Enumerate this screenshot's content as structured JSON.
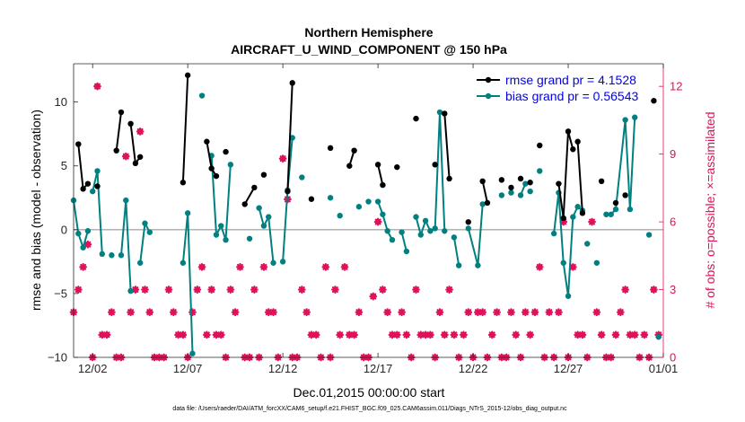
{
  "chart_data": {
    "type": "line",
    "title": [
      "Northern Hemisphere",
      "AIRCRAFT_U_WIND_COMPONENT @ 150 hPa"
    ],
    "xlabel": "Dec.01,2015 00:00:00 start",
    "ylabel_left": "rmse and bias (model - observation)",
    "ylabel_right": "# of obs: o=possible; ×=assimilated",
    "xlim": [
      1,
      32
    ],
    "ylim_left": [
      -10,
      13
    ],
    "ylim_right": [
      0,
      13
    ],
    "x_ticks": [
      {
        "x": 2,
        "label": "12/02"
      },
      {
        "x": 7,
        "label": "12/07"
      },
      {
        "x": 12,
        "label": "12/12"
      },
      {
        "x": 17,
        "label": "12/17"
      },
      {
        "x": 22,
        "label": "12/22"
      },
      {
        "x": 27,
        "label": "12/27"
      },
      {
        "x": 32,
        "label": "01/01"
      }
    ],
    "y_ticks_left": [
      -10,
      -5,
      0,
      5,
      10
    ],
    "y_ticks_right": [
      0,
      3,
      6,
      9,
      12
    ],
    "zero_line": 0,
    "legend": {
      "location": "top-right",
      "entries": [
        "rmse grand pr = 4.1528",
        "bias grand pr = 0.56543"
      ]
    },
    "colors": {
      "rmse": "#000000",
      "bias": "#008080",
      "obs": "#e0105a",
      "legend_text": "#0000ee",
      "zero_line": "#aaaaaa"
    },
    "series": [
      {
        "name": "rmse",
        "axis": "left",
        "segments": [
          [
            [
              1.25,
              6.7
            ],
            [
              1.5,
              3.2
            ],
            [
              1.75,
              3.6
            ]
          ],
          [
            [
              2.25,
              3.4
            ]
          ],
          [
            [
              3.25,
              6.2
            ],
            [
              3.5,
              9.2
            ]
          ],
          [
            [
              4.0,
              8.3
            ],
            [
              4.25,
              5.2
            ],
            [
              4.5,
              5.7
            ]
          ],
          [
            [
              6.75,
              3.7
            ],
            [
              7.0,
              12.1
            ]
          ],
          [
            [
              8.0,
              6.9
            ],
            [
              8.25,
              4.8
            ],
            [
              8.5,
              4.2
            ]
          ],
          [
            [
              9.0,
              6.1
            ]
          ],
          [
            [
              10.0,
              2.0
            ],
            [
              10.5,
              3.3
            ]
          ],
          [
            [
              11.0,
              4.3
            ]
          ],
          [
            [
              12.25,
              3.0
            ],
            [
              12.5,
              11.5
            ]
          ],
          [
            [
              13.5,
              2.4
            ]
          ],
          [
            [
              14.5,
              6.4
            ]
          ],
          [
            [
              15.5,
              5.0
            ],
            [
              15.75,
              6.2
            ]
          ],
          [
            [
              17.0,
              5.1
            ],
            [
              17.25,
              3.5
            ]
          ],
          [
            [
              18.0,
              4.9
            ]
          ],
          [
            [
              19.0,
              8.7
            ]
          ],
          [
            [
              20.0,
              5.1
            ]
          ],
          [
            [
              20.5,
              9.1
            ],
            [
              20.75,
              4.0
            ]
          ],
          [
            [
              21.75,
              0.6
            ]
          ],
          [
            [
              22.5,
              3.8
            ],
            [
              22.75,
              2.1
            ]
          ],
          [
            [
              23.5,
              3.9
            ]
          ],
          [
            [
              24.0,
              3.3
            ]
          ],
          [
            [
              24.5,
              4.0
            ]
          ],
          [
            [
              25.0,
              3.7
            ]
          ],
          [
            [
              25.5,
              6.6
            ]
          ],
          [
            [
              26.5,
              3.6
            ],
            [
              26.75,
              0.9
            ],
            [
              27.0,
              7.7
            ],
            [
              27.25,
              6.3
            ]
          ],
          [
            [
              27.5,
              6.9
            ],
            [
              27.75,
              1.3
            ]
          ],
          [
            [
              28.75,
              3.8
            ]
          ],
          [
            [
              29.5,
              2.1
            ]
          ],
          [
            [
              30.0,
              2.7
            ]
          ],
          [
            [
              31.5,
              10.1
            ]
          ]
        ]
      },
      {
        "name": "bias",
        "axis": "left",
        "segments": [
          [
            [
              1.0,
              2.3
            ],
            [
              1.25,
              -0.3
            ],
            [
              1.5,
              -1.4
            ],
            [
              1.75,
              -0.1
            ]
          ],
          [
            [
              2.0,
              3.0
            ],
            [
              2.25,
              4.6
            ],
            [
              2.5,
              -1.9
            ]
          ],
          [
            [
              3.0,
              -2.0
            ]
          ],
          [
            [
              3.5,
              -2.0
            ],
            [
              3.75,
              2.3
            ],
            [
              4.0,
              -4.8
            ]
          ],
          [
            [
              4.5,
              -2.6
            ],
            [
              4.75,
              0.5
            ],
            [
              5.0,
              -0.2
            ]
          ],
          [
            [
              6.75,
              -2.6
            ],
            [
              7.0,
              1.3
            ],
            [
              7.25,
              -9.7
            ]
          ],
          [
            [
              7.75,
              10.5
            ]
          ],
          [
            [
              8.25,
              5.8
            ],
            [
              8.5,
              -0.4
            ],
            [
              8.75,
              0.3
            ],
            [
              9.0,
              -0.8
            ],
            [
              9.25,
              5.1
            ]
          ],
          [
            [
              10.25,
              -0.7
            ]
          ],
          [
            [
              10.75,
              1.7
            ],
            [
              11.0,
              0.3
            ],
            [
              11.25,
              1.0
            ],
            [
              11.5,
              -2.6
            ]
          ],
          [
            [
              12.0,
              -2.5
            ],
            [
              12.25,
              3.1
            ],
            [
              12.5,
              7.2
            ]
          ],
          [
            [
              13.0,
              4.1
            ]
          ],
          [
            [
              14.5,
              2.5
            ]
          ],
          [
            [
              15.0,
              1.1
            ]
          ],
          [
            [
              16.0,
              1.8
            ]
          ],
          [
            [
              16.5,
              2.2
            ]
          ],
          [
            [
              17.0,
              2.2
            ],
            [
              17.25,
              1.2
            ],
            [
              17.5,
              -0.1
            ],
            [
              17.75,
              -0.8
            ]
          ],
          [
            [
              18.25,
              -0.2
            ],
            [
              18.5,
              -1.7
            ]
          ],
          [
            [
              19.0,
              1.0
            ],
            [
              19.25,
              -0.4
            ],
            [
              19.5,
              0.7
            ],
            [
              19.75,
              -0.1
            ],
            [
              20.0,
              0.1
            ],
            [
              20.25,
              9.2
            ],
            [
              20.5,
              -0.1
            ]
          ],
          [
            [
              21.0,
              -0.6
            ],
            [
              21.25,
              -2.8
            ]
          ],
          [
            [
              21.75,
              0.1
            ],
            [
              22.25,
              -2.8
            ],
            [
              22.5,
              2.0
            ]
          ],
          [
            [
              23.5,
              2.7
            ]
          ],
          [
            [
              24.0,
              2.9
            ]
          ],
          [
            [
              24.5,
              2.7
            ],
            [
              24.75,
              3.6
            ]
          ],
          [
            [
              25.0,
              3.0
            ]
          ],
          [
            [
              25.5,
              4.6
            ]
          ],
          [
            [
              26.25,
              -0.3
            ],
            [
              26.5,
              2.9
            ],
            [
              26.75,
              -2.6
            ],
            [
              27.0,
              -5.2
            ],
            [
              27.25,
              1.0
            ],
            [
              27.5,
              1.8
            ],
            [
              27.75,
              1.5
            ]
          ],
          [
            [
              28.0,
              -1.1
            ]
          ],
          [
            [
              28.5,
              -2.6
            ]
          ],
          [
            [
              29.0,
              1.2
            ]
          ],
          [
            [
              29.25,
              1.2
            ],
            [
              29.5,
              1.6
            ],
            [
              30.0,
              8.6
            ],
            [
              30.25,
              1.6
            ],
            [
              30.5,
              8.8
            ]
          ],
          [
            [
              31.25,
              -0.4
            ]
          ],
          [
            [
              31.75,
              -8.4
            ]
          ]
        ]
      },
      {
        "name": "obs_possible",
        "axis": "right",
        "points": [
          [
            2.25,
            12.0
          ],
          [
            3.75,
            8.9
          ],
          [
            4.5,
            10.0
          ],
          [
            12.0,
            8.8
          ],
          [
            16.75,
            2.7
          ],
          [
            17.0,
            6.0
          ],
          [
            26.75,
            6.0
          ],
          [
            31.5,
            3.0
          ]
        ]
      },
      {
        "name": "obs_assimilated",
        "axis": "right",
        "points": [
          [
            1.0,
            2.0
          ],
          [
            1.25,
            3.0
          ],
          [
            1.5,
            4.0
          ],
          [
            1.75,
            5.0
          ],
          [
            2.0,
            0.0
          ],
          [
            2.25,
            12.0
          ],
          [
            2.5,
            1.0
          ],
          [
            2.75,
            1.0
          ],
          [
            3.0,
            2.0
          ],
          [
            3.25,
            0.0
          ],
          [
            3.5,
            0.0
          ],
          [
            3.75,
            8.9
          ],
          [
            4.0,
            2.0
          ],
          [
            4.25,
            3.0
          ],
          [
            4.5,
            10.0
          ],
          [
            4.75,
            3.0
          ],
          [
            5.0,
            2.0
          ],
          [
            5.25,
            0.0
          ],
          [
            5.5,
            0.0
          ],
          [
            5.75,
            0.0
          ],
          [
            6.0,
            3.0
          ],
          [
            6.25,
            2.0
          ],
          [
            6.5,
            1.0
          ],
          [
            6.75,
            1.0
          ],
          [
            7.0,
            0.0
          ],
          [
            7.25,
            2.0
          ],
          [
            7.5,
            3.0
          ],
          [
            7.75,
            4.0
          ],
          [
            8.0,
            1.0
          ],
          [
            8.25,
            3.0
          ],
          [
            8.5,
            1.0
          ],
          [
            8.75,
            1.0
          ],
          [
            9.0,
            0.0
          ],
          [
            9.25,
            3.0
          ],
          [
            9.5,
            2.0
          ],
          [
            9.75,
            4.0
          ],
          [
            10.0,
            0.0
          ],
          [
            10.25,
            0.0
          ],
          [
            10.5,
            3.0
          ],
          [
            10.75,
            0.0
          ],
          [
            11.0,
            4.0
          ],
          [
            11.25,
            2.0
          ],
          [
            11.5,
            2.0
          ],
          [
            11.75,
            0.0
          ],
          [
            12.0,
            8.8
          ],
          [
            12.25,
            7.0
          ],
          [
            12.5,
            0.0
          ],
          [
            12.75,
            0.0
          ],
          [
            13.0,
            3.0
          ],
          [
            13.25,
            2.0
          ],
          [
            13.5,
            1.0
          ],
          [
            13.75,
            1.0
          ],
          [
            14.0,
            0.0
          ],
          [
            14.25,
            4.0
          ],
          [
            14.5,
            0.0
          ],
          [
            14.75,
            3.0
          ],
          [
            15.0,
            1.0
          ],
          [
            15.25,
            4.0
          ],
          [
            15.5,
            1.0
          ],
          [
            15.75,
            1.0
          ],
          [
            16.0,
            2.0
          ],
          [
            16.25,
            0.0
          ],
          [
            16.5,
            0.0
          ],
          [
            16.75,
            2.7
          ],
          [
            17.0,
            6.0
          ],
          [
            17.25,
            3.0
          ],
          [
            17.5,
            2.0
          ],
          [
            17.75,
            1.0
          ],
          [
            18.0,
            1.0
          ],
          [
            18.25,
            2.0
          ],
          [
            18.5,
            1.0
          ],
          [
            18.75,
            0.0
          ],
          [
            19.0,
            3.0
          ],
          [
            19.25,
            1.0
          ],
          [
            19.5,
            1.0
          ],
          [
            19.75,
            1.0
          ],
          [
            20.0,
            0.0
          ],
          [
            20.25,
            2.0
          ],
          [
            20.5,
            1.0
          ],
          [
            20.75,
            3.0
          ],
          [
            21.0,
            1.0
          ],
          [
            21.25,
            0.0
          ],
          [
            21.5,
            1.0
          ],
          [
            21.75,
            2.0
          ],
          [
            22.0,
            0.0
          ],
          [
            22.25,
            2.0
          ],
          [
            22.5,
            2.0
          ],
          [
            22.75,
            0.0
          ],
          [
            23.0,
            1.0
          ],
          [
            23.25,
            2.0
          ],
          [
            23.5,
            0.0
          ],
          [
            23.75,
            0.0
          ],
          [
            24.0,
            2.0
          ],
          [
            24.25,
            1.0
          ],
          [
            24.5,
            0.0
          ],
          [
            24.75,
            2.0
          ],
          [
            25.0,
            1.0
          ],
          [
            25.25,
            2.0
          ],
          [
            25.5,
            4.0
          ],
          [
            25.75,
            0.0
          ],
          [
            26.0,
            2.0
          ],
          [
            26.25,
            0.0
          ],
          [
            26.5,
            2.0
          ],
          [
            26.75,
            6.0
          ],
          [
            27.0,
            0.0
          ],
          [
            27.25,
            4.0
          ],
          [
            27.5,
            1.0
          ],
          [
            27.75,
            1.0
          ],
          [
            28.0,
            0.0
          ],
          [
            28.25,
            6.0
          ],
          [
            28.5,
            2.0
          ],
          [
            28.75,
            1.0
          ],
          [
            29.0,
            0.0
          ],
          [
            29.25,
            0.0
          ],
          [
            29.5,
            1.0
          ],
          [
            29.75,
            2.0
          ],
          [
            30.0,
            3.0
          ],
          [
            30.25,
            1.0
          ],
          [
            30.5,
            1.0
          ],
          [
            30.75,
            0.0
          ],
          [
            31.0,
            1.0
          ],
          [
            31.25,
            0.0
          ],
          [
            31.5,
            3.0
          ],
          [
            31.75,
            1.0
          ]
        ]
      }
    ]
  },
  "footer": "data file: /Users/raeder/DAI/ATM_forcXX/CAM6_setup/f.e21.FHIST_BGC.f09_025.CAM6assim.011/Diags_NTrS_2015-12/obs_diag_output.nc"
}
